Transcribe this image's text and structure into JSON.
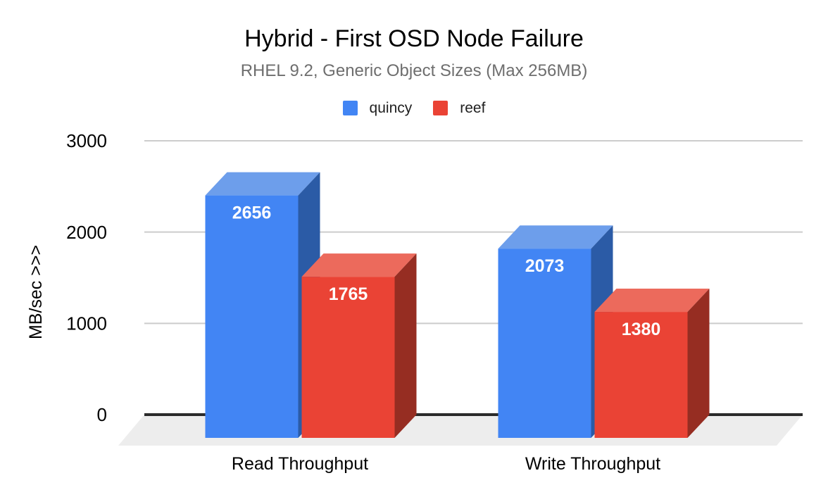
{
  "chart_data": {
    "type": "bar",
    "style": "3d-column",
    "title": "Hybrid - First OSD Node Failure",
    "subtitle": "RHEL 9.2, Generic Object Sizes (Max 256MB)",
    "categories": [
      "Read Throughput",
      "Write Throughput"
    ],
    "series": [
      {
        "name": "quincy",
        "values": [
          2656,
          2073
        ],
        "color": "#4285f4",
        "top_color": "#6d9eeb",
        "side_color": "#2b5ba6"
      },
      {
        "name": "reef",
        "values": [
          1765,
          1380
        ],
        "color": "#ea4335",
        "top_color": "#ec6a5c",
        "side_color": "#962d22"
      }
    ],
    "xlabel": "",
    "ylabel": "MB/sec   >>>",
    "yticks": [
      0,
      1000,
      2000,
      3000
    ],
    "ylim": [
      0,
      3000
    ],
    "grid": true,
    "legend_position": "top",
    "value_labels_position": "inside-top",
    "colors": {
      "value_label": "#ffffff",
      "gridline": "#cccccc",
      "baseline": "#2b2b2b",
      "floor": "#ededed",
      "title": "#000000",
      "subtitle": "#6e6e6e",
      "axis_text": "#000000"
    }
  }
}
